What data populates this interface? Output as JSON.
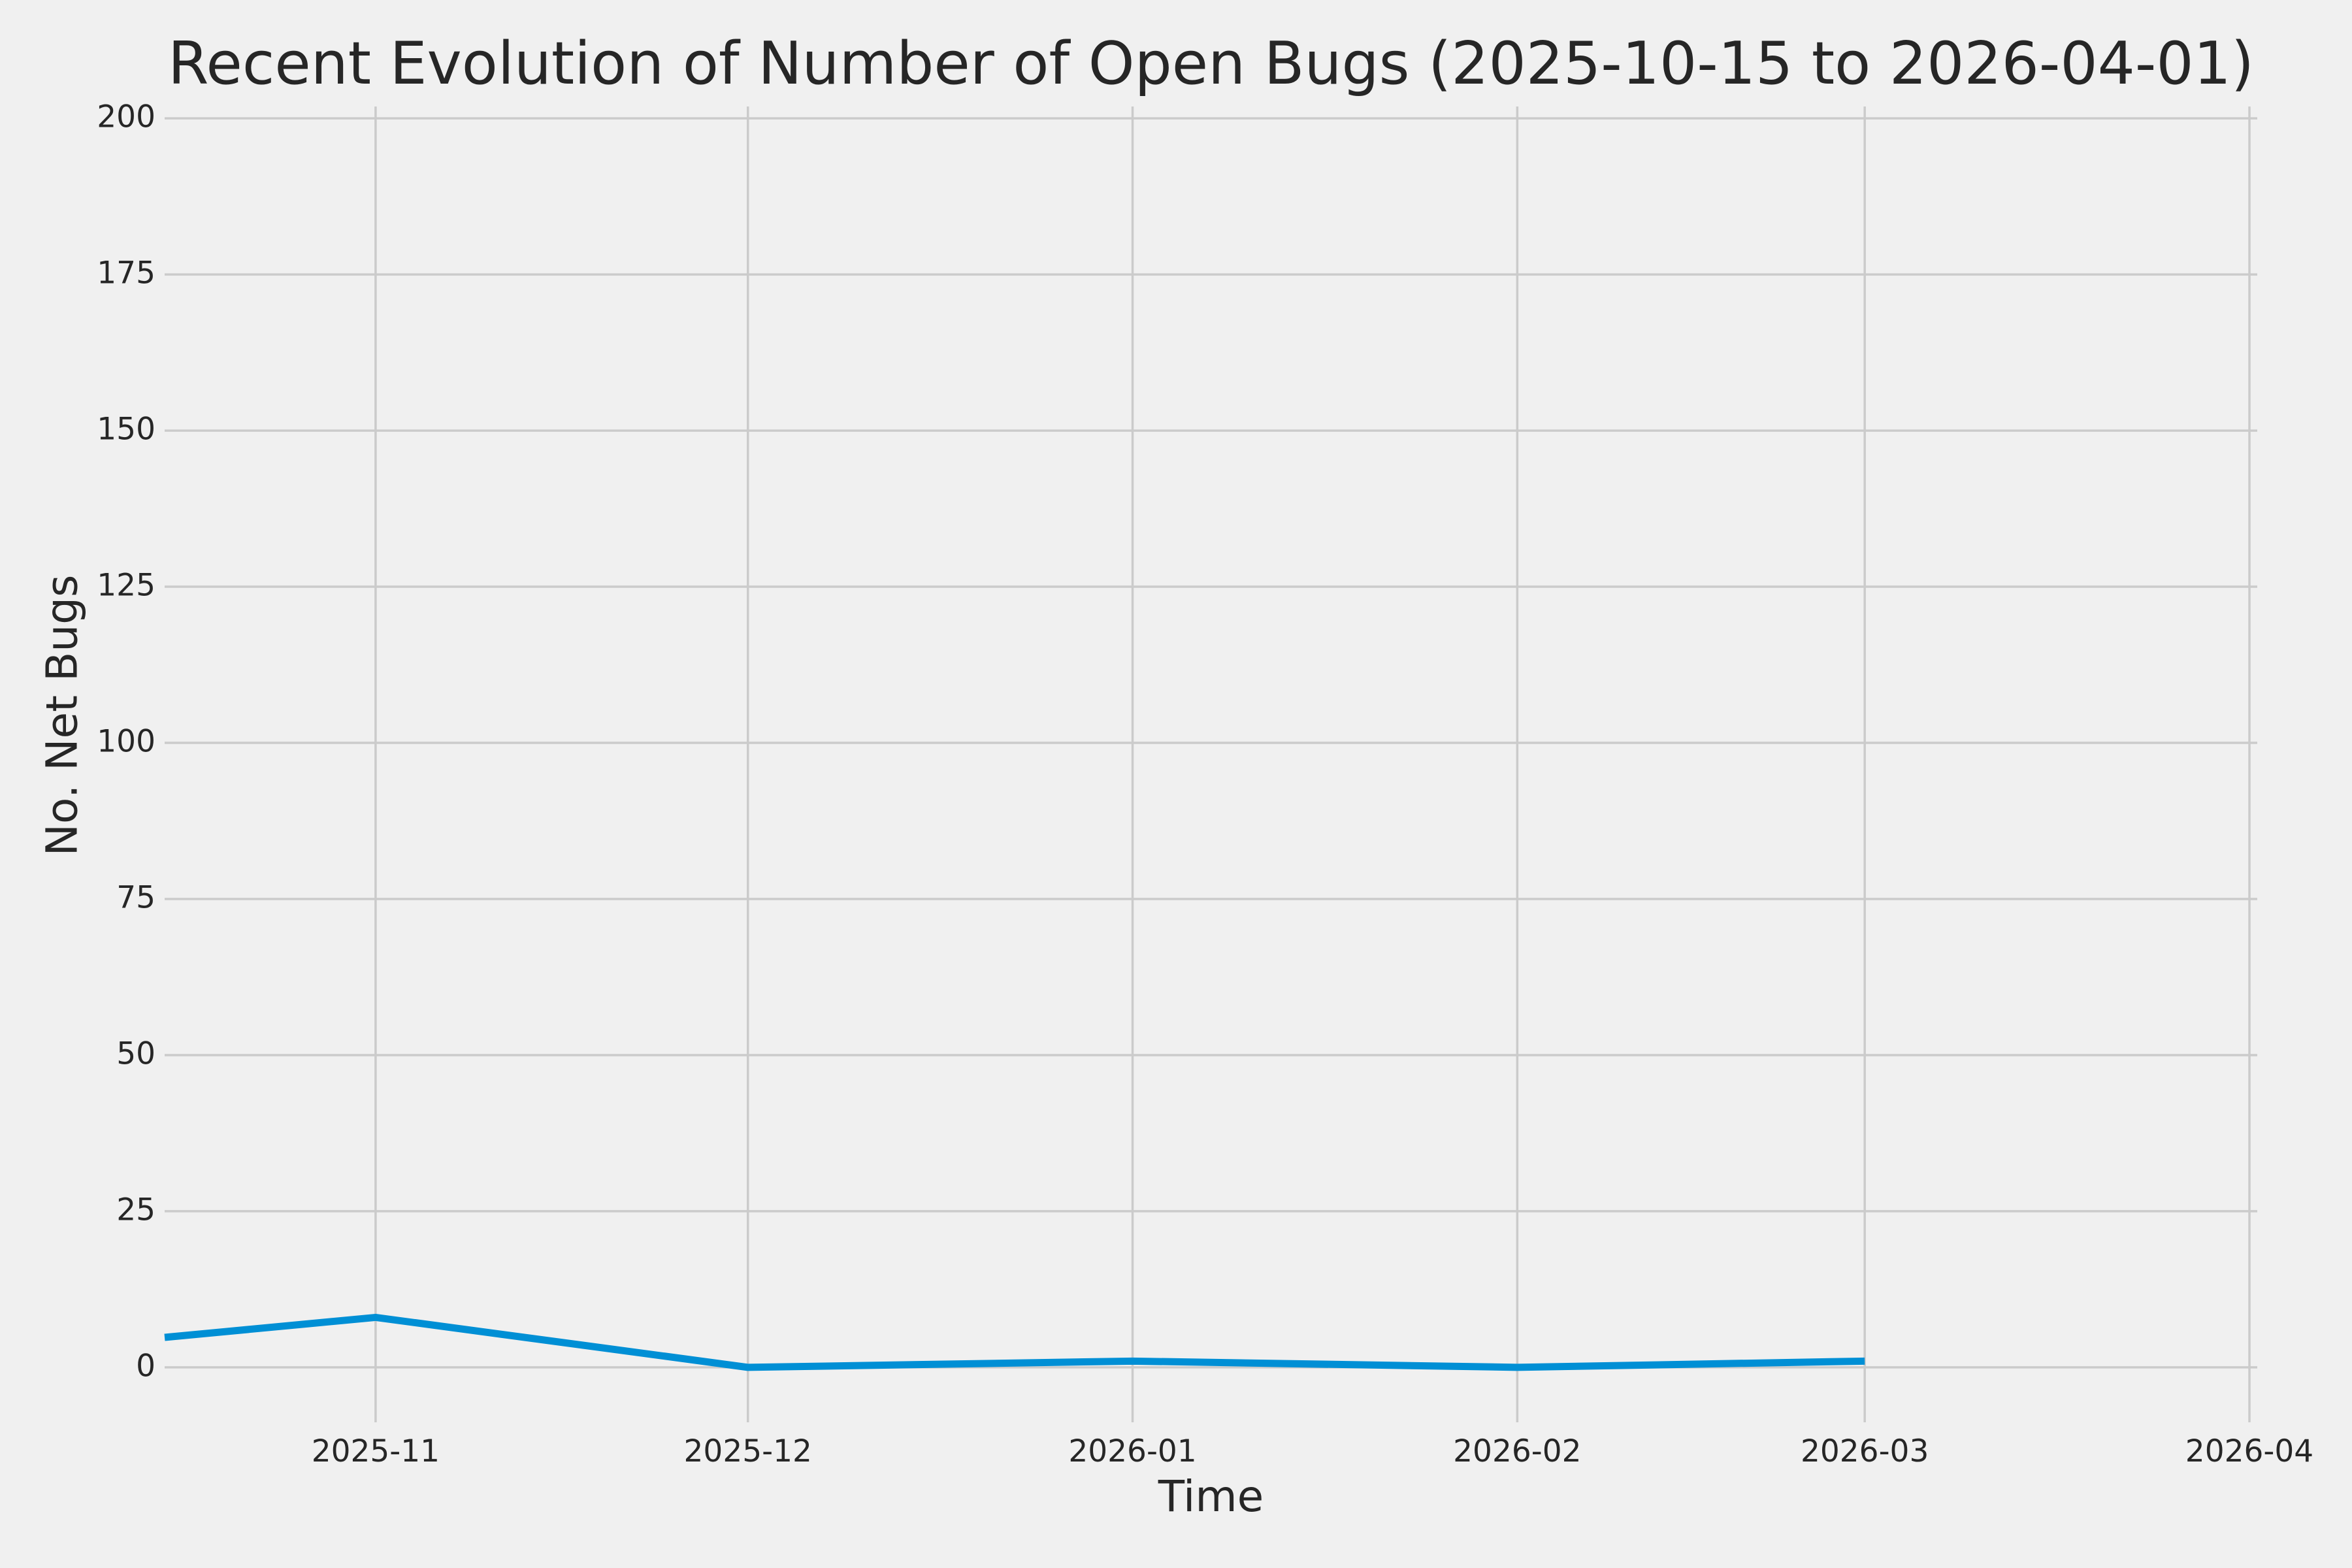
{
  "chart_data": {
    "type": "line",
    "title": "Recent Evolution of Number of Open Bugs (2025-10-15 to 2026-04-01)",
    "xlabel": "Time",
    "ylabel": "No. Net Bugs",
    "x_start_date": "2025-10-15",
    "x_end_date": "2026-04-01",
    "x_ticks": [
      {
        "label": "2025-11",
        "day": 17
      },
      {
        "label": "2025-12",
        "day": 47
      },
      {
        "label": "2026-01",
        "day": 78
      },
      {
        "label": "2026-02",
        "day": 109
      },
      {
        "label": "2026-03",
        "day": 137
      },
      {
        "label": "2026-04",
        "day": 168
      }
    ],
    "x_range_days": [
      0,
      168
    ],
    "y_ticks": [
      0,
      25,
      50,
      75,
      100,
      125,
      150,
      175,
      200
    ],
    "ylim": [
      -8.8,
      201.9
    ],
    "grid": true,
    "legend": "none",
    "series": [
      {
        "name": "open-bugs",
        "dates": [
          "2025-10-15",
          "2025-11-01",
          "2025-12-01",
          "2026-01-01",
          "2026-02-01",
          "2026-03-01"
        ],
        "x_days": [
          0,
          17,
          47,
          78,
          109,
          137
        ],
        "values": [
          4.8,
          8,
          0,
          1,
          0,
          1
        ]
      }
    ],
    "colors": {
      "line": "#008fd5",
      "background": "#f0f0f0",
      "grid": "#cbcbcb",
      "text": "#262626"
    }
  }
}
